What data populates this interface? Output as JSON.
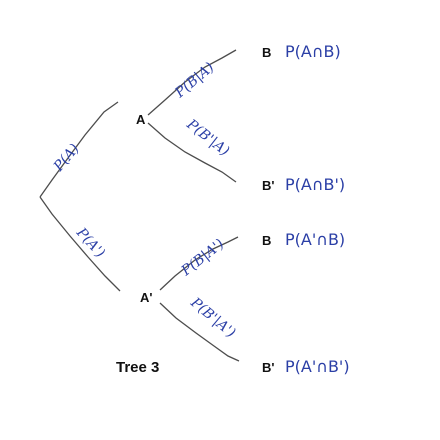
{
  "caption": "Tree 3",
  "colors": {
    "branch": "#4d4d4d",
    "outcome": "#2b3fa6",
    "probability": "#2b3fa6",
    "node": "#111111"
  },
  "nodes": {
    "a": "A",
    "a_prime": "A'",
    "b_top": "B",
    "b_prime_top": "B'",
    "b_bottom": "B",
    "b_prime_bottom": "B'"
  },
  "outcomes": {
    "a_and_b": "P(A∩B)",
    "a_and_b_prime": "P(A∩B')",
    "a_prime_and_b": "P(A'∩B)",
    "a_prime_and_b_prime": "P(A'∩B')"
  },
  "branch_probabilities": {
    "p_a": "P(A)",
    "p_a_prime": "P(A')",
    "p_b_given_a": "P(B|A)",
    "p_b_prime_given_a": "P(B'|A)",
    "p_b_given_a_prime": "P(B|A')",
    "p_b_prime_given_a_prime": "P(B'|A')"
  }
}
